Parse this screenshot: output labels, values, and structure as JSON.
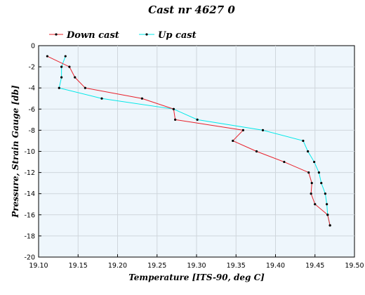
{
  "chart_data": {
    "type": "line",
    "title": "Cast nr 4627 0",
    "xlabel": "Temperature [ITS-90, deg C]",
    "ylabel": "Pressure, Strain Gauge [db]",
    "xlim": [
      19.1,
      19.5
    ],
    "ylim": [
      -20,
      0
    ],
    "xticks": [
      "19.10",
      "19.15",
      "19.20",
      "19.25",
      "19.30",
      "19.35",
      "19.40",
      "19.45",
      "19.50"
    ],
    "xtick_values": [
      19.1,
      19.15,
      19.2,
      19.25,
      19.3,
      19.35,
      19.4,
      19.45,
      19.5
    ],
    "yticks": [
      "0",
      "-2",
      "-4",
      "-6",
      "-8",
      "-10",
      "-12",
      "-14",
      "-16",
      "-18",
      "-20"
    ],
    "ytick_values": [
      0,
      -2,
      -4,
      -6,
      -8,
      -10,
      -12,
      -14,
      -16,
      -18,
      -20
    ],
    "grid": true,
    "legend_position": "top-left",
    "series": [
      {
        "name": "Down cast",
        "color": "#e8202a",
        "x": [
          19.111,
          19.139,
          19.146,
          19.159,
          19.231,
          19.271,
          19.273,
          19.359,
          19.346,
          19.376,
          19.411,
          19.442,
          19.446,
          19.445,
          19.45,
          19.466,
          19.469
        ],
        "y": [
          -1,
          -2,
          -3,
          -4,
          -5,
          -6,
          -7,
          -8,
          -9,
          -10,
          -11,
          -12,
          -13,
          -14,
          -15,
          -16,
          -17
        ]
      },
      {
        "name": "Up cast",
        "color": "#00e8e8",
        "x": [
          19.469,
          19.466,
          19.465,
          19.463,
          19.458,
          19.455,
          19.449,
          19.441,
          19.435,
          19.384,
          19.301,
          19.271,
          19.18,
          19.126,
          19.129,
          19.129,
          19.134
        ],
        "y": [
          -17,
          -16,
          -15,
          -14,
          -13,
          -12,
          -11,
          -10,
          -9,
          -8,
          -7,
          -6,
          -5,
          -4,
          -3,
          -2,
          -1
        ]
      }
    ]
  }
}
